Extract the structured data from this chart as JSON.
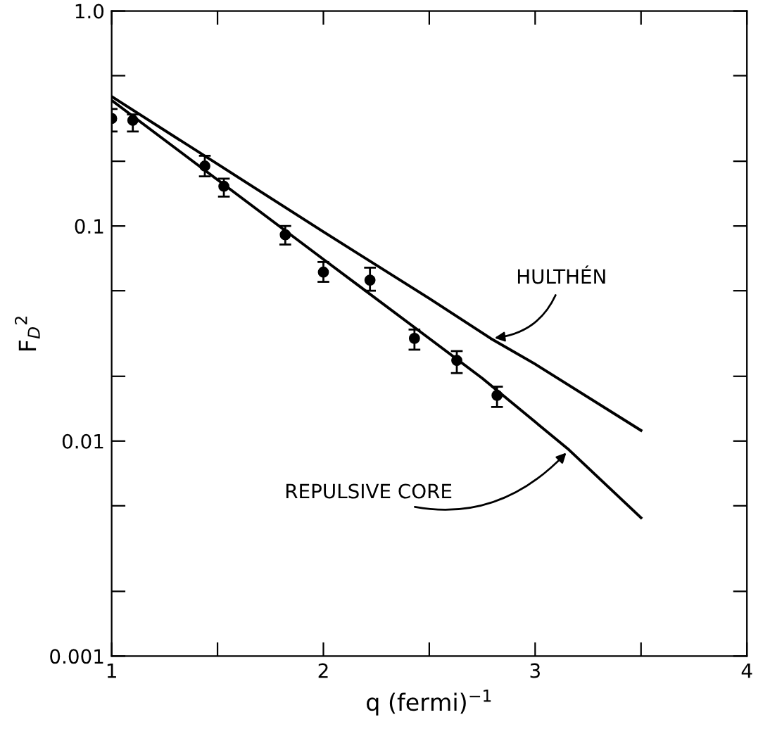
{
  "chart_data": {
    "type": "line",
    "xlabel": "q (fermi)$^{−1}$",
    "ylabel": "F$_{D}$$^{2}$",
    "log": "y",
    "grid": false,
    "legend": false,
    "xlim": [
      1,
      4
    ],
    "xticks": [
      1,
      {
        "value": 1.5,
        "label": null
      },
      2,
      {
        "value": 2.5,
        "label": null
      },
      3,
      {
        "value": 3.5,
        "label": null
      },
      4
    ],
    "ylim": [
      0.001,
      1
    ],
    "yticks": [
      0.001,
      {
        "value": 0.002,
        "label": null
      },
      {
        "value": 0.005,
        "label": null
      },
      0.01,
      {
        "value": 0.02,
        "label": null
      },
      {
        "value": 0.05,
        "label": null
      },
      0.1,
      {
        "value": 0.2,
        "label": null
      },
      {
        "value": 0.5,
        "label": null
      },
      {
        "value": 1,
        "label": "1.0"
      }
    ],
    "series": [
      {
        "type": "scatter",
        "color": "#000000",
        "marker": "circle",
        "x": [
          1.0,
          1.1,
          1.44,
          1.53,
          1.82,
          2.0,
          2.22,
          2.43,
          2.63,
          2.82
        ],
        "values": [
          0.316,
          0.31,
          0.19,
          0.153,
          0.091,
          0.061,
          0.056,
          0.03,
          0.0237,
          0.0163
        ],
        "errors": [
          [
            0.275,
            0.35
          ],
          [
            0.275,
            0.33
          ],
          [
            0.17,
            0.212
          ],
          [
            0.137,
            0.166
          ],
          [
            0.082,
            0.1
          ],
          [
            0.055,
            0.068
          ],
          [
            0.05,
            0.064
          ],
          [
            0.0266,
            0.033
          ],
          [
            0.0207,
            0.0262
          ],
          [
            0.0144,
            0.0179
          ]
        ]
      },
      {
        "color": "#000000",
        "line_style": "solid",
        "x": [
          1,
          1.5,
          2,
          2.5,
          2.79,
          3.0,
          3.5
        ],
        "values": [
          0.4,
          0.194,
          0.094,
          0.046,
          0.03,
          0.0228,
          0.0112
        ]
      },
      {
        "color": "#000000",
        "line_style": "solid",
        "x": [
          1,
          1.5,
          2,
          2.5,
          2.75,
          3.16,
          3.5
        ],
        "values": [
          0.384,
          0.164,
          0.07,
          0.03,
          0.0196,
          0.0091,
          0.0044
        ]
      }
    ],
    "annotations": [
      {
        "text": "HULTHÉN",
        "x": 2.79,
        "y": 0.03
      },
      {
        "text": "REPULSIVE CORE",
        "x": 3.16,
        "y": 0.0091
      }
    ]
  }
}
